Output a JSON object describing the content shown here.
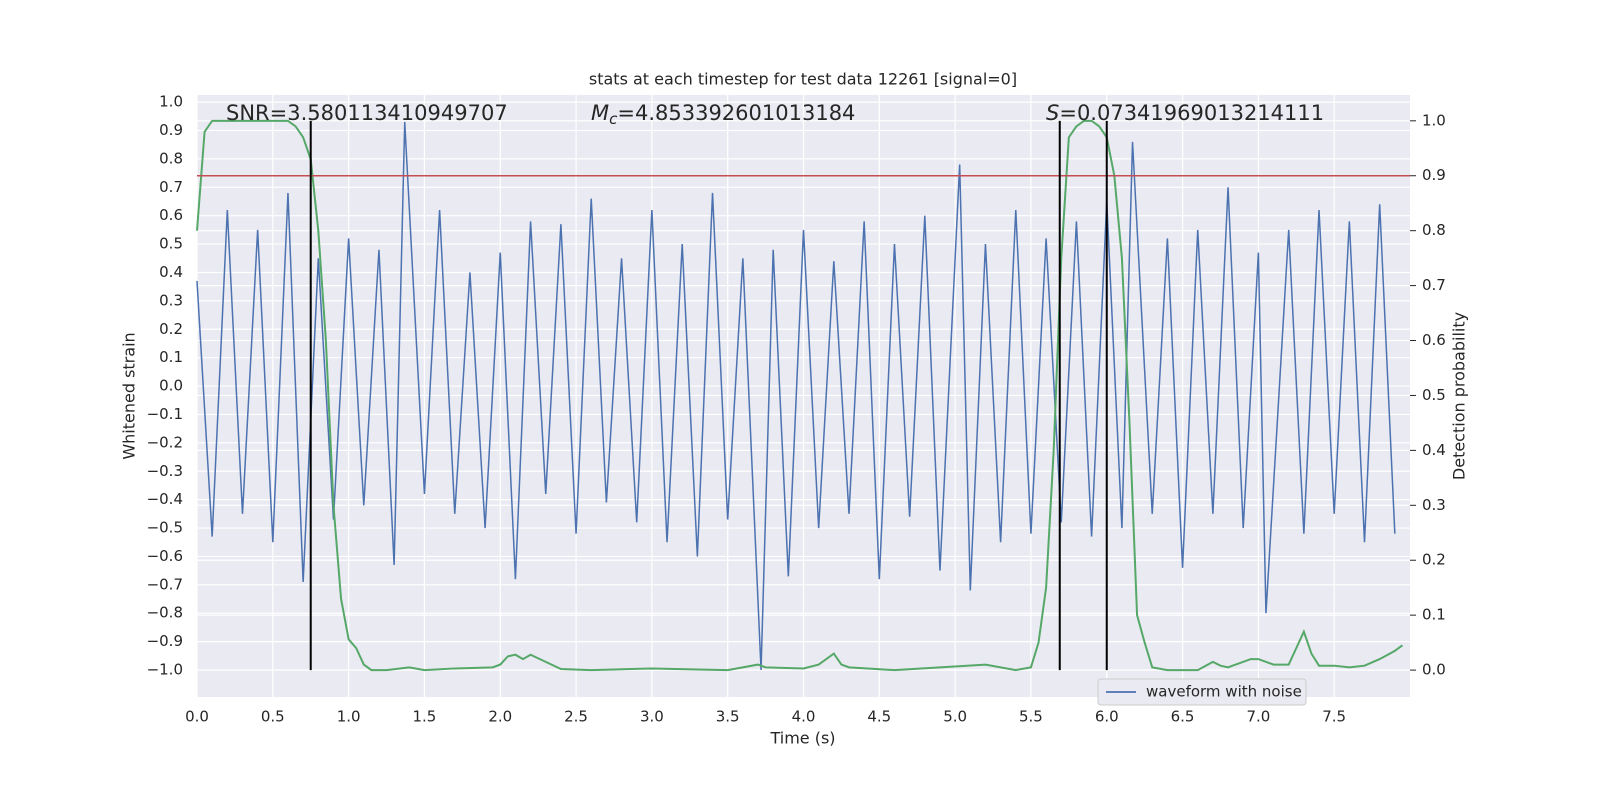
{
  "chart_data": {
    "type": "line",
    "title": "stats at each timestep for test data 12261 [signal=0]",
    "xlabel": "Time (s)",
    "ylabel": "Whitened strain",
    "y2label": "Detection probability",
    "xlim": [
      0,
      8.0
    ],
    "ylim": [
      -1.095,
      1.025
    ],
    "y2lim": [
      -0.049,
      1.047
    ],
    "xticks": [
      0.0,
      0.5,
      1.0,
      1.5,
      2.0,
      2.5,
      3.0,
      3.5,
      4.0,
      4.5,
      5.0,
      5.5,
      6.0,
      6.5,
      7.0,
      7.5
    ],
    "yticks": [
      -1.0,
      -0.9,
      -0.8,
      -0.7,
      -0.6,
      -0.5,
      -0.4,
      -0.3,
      -0.2,
      -0.1,
      0.0,
      0.1,
      0.2,
      0.3,
      0.4,
      0.5,
      0.6,
      0.7,
      0.8,
      0.9,
      1.0
    ],
    "y2ticks": [
      0.0,
      0.1,
      0.2,
      0.3,
      0.4,
      0.5,
      0.6,
      0.7,
      0.8,
      0.9,
      1.0
    ],
    "grid": true,
    "legend": "lower right",
    "series": [
      {
        "name": "waveform with noise",
        "color": "#4c72b0",
        "x": [
          0.0,
          0.1,
          0.2,
          0.3,
          0.4,
          0.5,
          0.6,
          0.7,
          0.8,
          0.9,
          1.0,
          1.1,
          1.2,
          1.3,
          1.37,
          1.5,
          1.6,
          1.7,
          1.8,
          1.9,
          2.0,
          2.1,
          2.2,
          2.3,
          2.4,
          2.5,
          2.6,
          2.7,
          2.8,
          2.9,
          3.0,
          3.1,
          3.2,
          3.3,
          3.4,
          3.5,
          3.6,
          3.72,
          3.8,
          3.9,
          4.0,
          4.1,
          4.2,
          4.3,
          4.4,
          4.5,
          4.6,
          4.7,
          4.8,
          4.9,
          5.03,
          5.1,
          5.2,
          5.3,
          5.4,
          5.5,
          5.6,
          5.7,
          5.8,
          5.9,
          6.0,
          6.1,
          6.17,
          6.3,
          6.4,
          6.5,
          6.6,
          6.7,
          6.8,
          6.9,
          7.0,
          7.05,
          7.2,
          7.3,
          7.4,
          7.5,
          7.6,
          7.7,
          7.8,
          7.9
        ],
        "values": [
          0.37,
          -0.53,
          0.62,
          -0.45,
          0.55,
          -0.55,
          0.68,
          -0.69,
          0.45,
          -0.47,
          0.52,
          -0.42,
          0.48,
          -0.63,
          0.93,
          -0.38,
          0.62,
          -0.45,
          0.4,
          -0.5,
          0.47,
          -0.68,
          0.58,
          -0.38,
          0.57,
          -0.52,
          0.66,
          -0.41,
          0.45,
          -0.48,
          0.62,
          -0.55,
          0.5,
          -0.6,
          0.68,
          -0.47,
          0.45,
          -1.0,
          0.48,
          -0.67,
          0.55,
          -0.5,
          0.44,
          -0.45,
          0.58,
          -0.68,
          0.5,
          -0.46,
          0.6,
          -0.65,
          0.78,
          -0.72,
          0.5,
          -0.55,
          0.62,
          -0.52,
          0.52,
          -0.48,
          0.58,
          -0.53,
          0.65,
          -0.5,
          0.86,
          -0.45,
          0.52,
          -0.64,
          0.55,
          -0.45,
          0.7,
          -0.5,
          0.47,
          -0.8,
          0.55,
          -0.52,
          0.62,
          -0.45,
          0.58,
          -0.55,
          0.64,
          -0.52
        ]
      },
      {
        "color": "#55a868",
        "axis": "y2",
        "x": [
          0.0,
          0.05,
          0.1,
          0.2,
          0.3,
          0.4,
          0.5,
          0.6,
          0.65,
          0.7,
          0.75,
          0.8,
          0.85,
          0.9,
          0.95,
          1.0,
          1.05,
          1.1,
          1.15,
          1.25,
          1.4,
          1.5,
          1.7,
          1.95,
          2.0,
          2.05,
          2.1,
          2.15,
          2.2,
          2.3,
          2.4,
          2.6,
          3.0,
          3.5,
          3.7,
          3.75,
          4.0,
          4.1,
          4.2,
          4.25,
          4.3,
          4.6,
          5.2,
          5.4,
          5.5,
          5.55,
          5.6,
          5.65,
          5.7,
          5.75,
          5.8,
          5.85,
          5.9,
          5.95,
          6.0,
          6.05,
          6.1,
          6.15,
          6.2,
          6.25,
          6.3,
          6.4,
          6.6,
          6.7,
          6.75,
          6.8,
          6.95,
          7.0,
          7.1,
          7.2,
          7.25,
          7.3,
          7.35,
          7.4,
          7.5,
          7.6,
          7.7,
          7.8,
          7.9,
          7.95
        ],
        "values": [
          0.8,
          0.98,
          1.0,
          1.0,
          1.0,
          1.0,
          1.0,
          1.0,
          0.99,
          0.97,
          0.93,
          0.8,
          0.6,
          0.3,
          0.13,
          0.056,
          0.04,
          0.01,
          0.0,
          0.0,
          0.005,
          0.0,
          0.003,
          0.005,
          0.01,
          0.025,
          0.028,
          0.02,
          0.028,
          0.015,
          0.002,
          0.0,
          0.003,
          0.0,
          0.01,
          0.005,
          0.003,
          0.01,
          0.03,
          0.01,
          0.005,
          0.0,
          0.01,
          0.0,
          0.005,
          0.05,
          0.15,
          0.4,
          0.75,
          0.97,
          0.99,
          1.0,
          1.0,
          0.99,
          0.97,
          0.9,
          0.75,
          0.45,
          0.1,
          0.05,
          0.005,
          0.0,
          0.0,
          0.015,
          0.008,
          0.005,
          0.02,
          0.02,
          0.01,
          0.01,
          0.04,
          0.07,
          0.03,
          0.008,
          0.008,
          0.005,
          0.008,
          0.02,
          0.035,
          0.045
        ]
      }
    ],
    "threshold": {
      "axis": "y2",
      "value": 0.9,
      "color": "#c44e52"
    },
    "vlines": {
      "x": [
        0.75,
        5.69,
        6.0
      ],
      "color": "#000000"
    },
    "annotations": [
      {
        "text": "SNR=3.580113410949707"
      },
      {
        "symbol": "M",
        "subscript": "c",
        "text": "=4.853392601013184"
      },
      {
        "symbol": "S",
        "text": "=0.07341969013214111"
      }
    ]
  }
}
